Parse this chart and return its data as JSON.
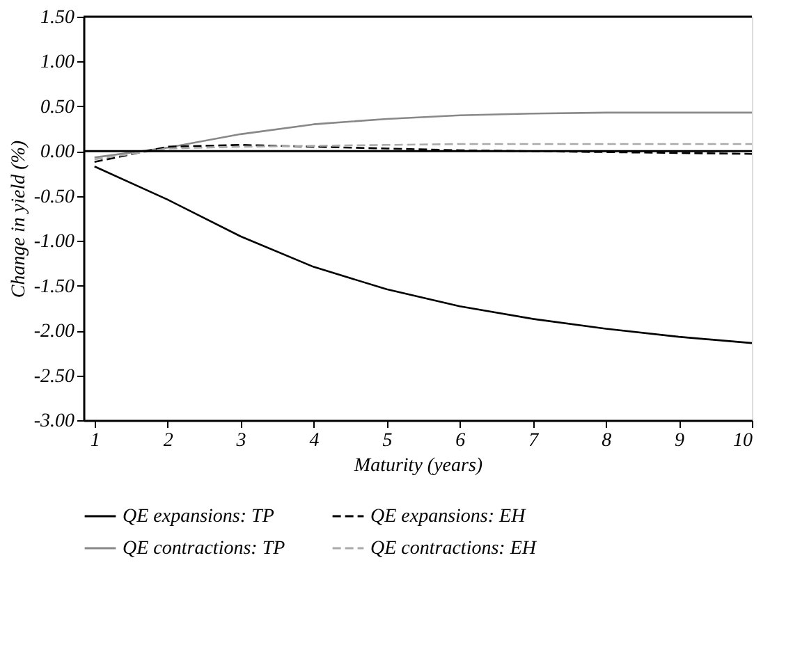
{
  "chart_data": {
    "type": "line",
    "xlabel": "Maturity (years)",
    "ylabel": "Change in yield (%)",
    "x": [
      1,
      2,
      3,
      4,
      5,
      6,
      7,
      8,
      9,
      10
    ],
    "xlim": [
      0.85,
      10
    ],
    "xticks": [
      1,
      2,
      3,
      4,
      5,
      6,
      7,
      8,
      9,
      10
    ],
    "ylim": [
      -3,
      1.5
    ],
    "yticks": [
      {
        "value": -3,
        "label": "-3.00"
      },
      {
        "value": -2.5,
        "label": "-2.50"
      },
      {
        "value": -2,
        "label": "-2.00"
      },
      {
        "value": -1.5,
        "label": "-1.50"
      },
      {
        "value": -1,
        "label": "-1.00"
      },
      {
        "value": -0.5,
        "label": "-0.50"
      },
      {
        "value": 0,
        "label": "0.00"
      },
      {
        "value": 0.5,
        "label": "0.50"
      },
      {
        "value": 1,
        "label": "1.00"
      },
      {
        "value": 1.5,
        "label": "1.50"
      }
    ],
    "series": [
      {
        "name": "QE expansions: TP",
        "color": "#000000",
        "line_style": "solid",
        "values": [
          -0.17,
          -0.54,
          -0.95,
          -1.29,
          -1.54,
          -1.73,
          -1.87,
          -1.98,
          -2.07,
          -2.14
        ]
      },
      {
        "name": "QE expansions: EH",
        "color": "#000000",
        "line_style": "dashed",
        "values": [
          -0.12,
          0.05,
          0.07,
          0.05,
          0.03,
          0.01,
          0.0,
          -0.01,
          -0.02,
          -0.03
        ]
      },
      {
        "name": "QE contractions: TP",
        "color": "#888888",
        "line_style": "solid",
        "values": [
          -0.07,
          0.04,
          0.19,
          0.3,
          0.36,
          0.4,
          0.42,
          0.43,
          0.43,
          0.43
        ]
      },
      {
        "name": "QE contractions: EH",
        "color": "#aaaaaa",
        "line_style": "dashed",
        "values": [
          -0.09,
          0.03,
          0.05,
          0.06,
          0.07,
          0.08,
          0.08,
          0.08,
          0.08,
          0.08
        ]
      }
    ],
    "ref_lines": [
      {
        "axis": "y",
        "value": 0,
        "color": "#000000"
      }
    ],
    "legend": "bottom",
    "grid": false,
    "marker": "none"
  }
}
